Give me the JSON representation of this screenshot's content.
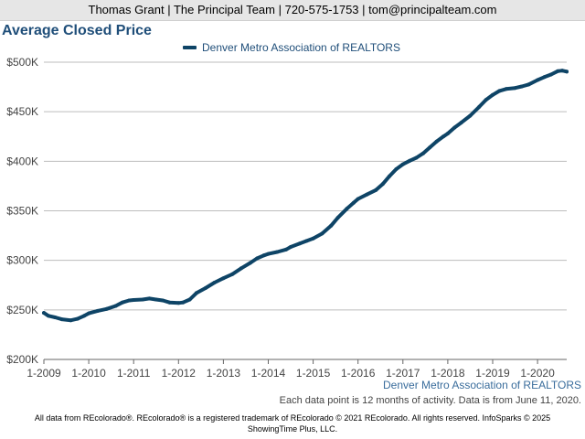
{
  "header": {
    "contact": "Thomas Grant | The Principal Team | 720-575-1753 | tom@principalteam.com"
  },
  "chart_data": {
    "type": "line",
    "title": "Average Closed Price",
    "legend_position": "top-center",
    "grid": true,
    "color": "#0e4466",
    "series": [
      {
        "name": "Denver Metro Association of REALTORS",
        "points": [
          [
            2009.0,
            247000
          ],
          [
            2009.1,
            244000
          ],
          [
            2009.25,
            242500
          ],
          [
            2009.4,
            240500
          ],
          [
            2009.6,
            239500
          ],
          [
            2009.75,
            241000
          ],
          [
            2009.9,
            244000
          ],
          [
            2010.0,
            246500
          ],
          [
            2010.2,
            249000
          ],
          [
            2010.4,
            251000
          ],
          [
            2010.6,
            254000
          ],
          [
            2010.75,
            257500
          ],
          [
            2010.9,
            259500
          ],
          [
            2011.0,
            260000
          ],
          [
            2011.2,
            260500
          ],
          [
            2011.35,
            261500
          ],
          [
            2011.5,
            260500
          ],
          [
            2011.65,
            259500
          ],
          [
            2011.8,
            257500
          ],
          [
            2012.0,
            257000
          ],
          [
            2012.1,
            257500
          ],
          [
            2012.25,
            260500
          ],
          [
            2012.4,
            267000
          ],
          [
            2012.6,
            272000
          ],
          [
            2012.8,
            277500
          ],
          [
            2013.0,
            282000
          ],
          [
            2013.2,
            286000
          ],
          [
            2013.4,
            292000
          ],
          [
            2013.6,
            297500
          ],
          [
            2013.75,
            302000
          ],
          [
            2013.9,
            305000
          ],
          [
            2014.0,
            306500
          ],
          [
            2014.2,
            308500
          ],
          [
            2014.4,
            311000
          ],
          [
            2014.5,
            313500
          ],
          [
            2014.7,
            317000
          ],
          [
            2014.85,
            319500
          ],
          [
            2015.0,
            322000
          ],
          [
            2015.2,
            327000
          ],
          [
            2015.4,
            335000
          ],
          [
            2015.55,
            343000
          ],
          [
            2015.75,
            352000
          ],
          [
            2015.9,
            358000
          ],
          [
            2016.0,
            362000
          ],
          [
            2016.2,
            366500
          ],
          [
            2016.4,
            371000
          ],
          [
            2016.55,
            377000
          ],
          [
            2016.7,
            385000
          ],
          [
            2016.85,
            392000
          ],
          [
            2017.0,
            397000
          ],
          [
            2017.15,
            400500
          ],
          [
            2017.3,
            403500
          ],
          [
            2017.45,
            408000
          ],
          [
            2017.6,
            414000
          ],
          [
            2017.75,
            420000
          ],
          [
            2017.9,
            425000
          ],
          [
            2018.0,
            428000
          ],
          [
            2018.15,
            434000
          ],
          [
            2018.3,
            439000
          ],
          [
            2018.5,
            446000
          ],
          [
            2018.7,
            455000
          ],
          [
            2018.85,
            462000
          ],
          [
            2019.0,
            467000
          ],
          [
            2019.15,
            471000
          ],
          [
            2019.3,
            473000
          ],
          [
            2019.5,
            474000
          ],
          [
            2019.65,
            475500
          ],
          [
            2019.8,
            477500
          ],
          [
            2020.0,
            482000
          ],
          [
            2020.15,
            485000
          ],
          [
            2020.3,
            487500
          ],
          [
            2020.45,
            491000
          ],
          [
            2020.55,
            491500
          ],
          [
            2020.65,
            490500
          ]
        ]
      }
    ],
    "xlim": [
      2009,
      2020.65
    ],
    "ylim": [
      200000,
      500000
    ],
    "yticks": [
      {
        "value": 200000,
        "label": "$200K"
      },
      {
        "value": 250000,
        "label": "$250K"
      },
      {
        "value": 300000,
        "label": "$300K"
      },
      {
        "value": 350000,
        "label": "$350K"
      },
      {
        "value": 400000,
        "label": "$400K"
      },
      {
        "value": 450000,
        "label": "$450K"
      },
      {
        "value": 500000,
        "label": "$500K"
      }
    ],
    "xticks": [
      {
        "value": 2009,
        "label": "1-2009"
      },
      {
        "value": 2010,
        "label": "1-2010"
      },
      {
        "value": 2011,
        "label": "1-2011"
      },
      {
        "value": 2012,
        "label": "1-2012"
      },
      {
        "value": 2013,
        "label": "1-2013"
      },
      {
        "value": 2014,
        "label": "1-2014"
      },
      {
        "value": 2015,
        "label": "1-2015"
      },
      {
        "value": 2016,
        "label": "1-2016"
      },
      {
        "value": 2017,
        "label": "1-2017"
      },
      {
        "value": 2018,
        "label": "1-2018"
      },
      {
        "value": 2019,
        "label": "1-2019"
      },
      {
        "value": 2020,
        "label": "1-2020"
      }
    ]
  },
  "source_label": "Denver Metro Association of REALTORS",
  "note": "Each data point is 12 months of activity. Data is from June 11, 2020.",
  "footer": {
    "line1": "All data from REcolorado®. REcolorado® is a registered trademark of REcolorado © 2021 REcolorado. All rights reserved. InfoSparks © 2025",
    "line2": "ShowingTime Plus, LLC."
  }
}
